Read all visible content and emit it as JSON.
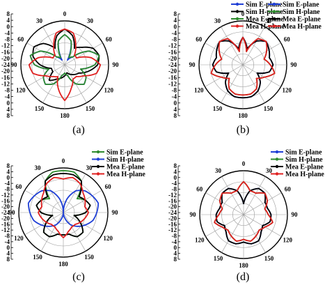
{
  "colors": {
    "blue": "#1f3fd6",
    "black": "#000000",
    "green": "#2e8b2e",
    "red": "#e02020",
    "grid": "#9a9a9a"
  },
  "radial_ticks": [
    "8",
    "4",
    "0",
    "-4",
    "-8",
    "-12",
    "-16",
    "-20",
    "-24",
    "-20",
    "-16",
    "-12",
    "-8",
    "-4",
    "0",
    "4",
    "8"
  ],
  "angle_labels": [
    "0",
    "30",
    "60",
    "90",
    "120",
    "150",
    "180",
    "150",
    "120",
    "90",
    "60",
    "30"
  ],
  "chart_data": [
    {
      "type": "polar-line",
      "caption": "(a)",
      "angle_unit": "deg",
      "r_range": [
        -24,
        8
      ],
      "grid": true,
      "legend_position": "top-right",
      "series": [
        {
          "name": "Sim  E-plane",
          "color": "#1f3fd6",
          "values": [
            -2,
            -6,
            -20,
            -16,
            -4,
            2,
            -2,
            -12,
            -6,
            -4,
            -8,
            -16,
            -18,
            -16,
            -8,
            -4,
            -6,
            -12,
            -2,
            2,
            -4,
            -16,
            -20,
            -6
          ]
        },
        {
          "name": "Sim  H-plane",
          "color": "#000000",
          "values": [
            2,
            -2,
            -10,
            -6,
            0,
            2,
            0,
            -6,
            -12,
            -14,
            -16,
            -18,
            -16,
            -14,
            -12,
            -8,
            -14,
            -14,
            -6,
            0,
            2,
            -2,
            -10,
            -2
          ]
        },
        {
          "name": "Mea E-plane",
          "color": "#2e8b2e",
          "values": [
            -2,
            -6,
            -18,
            -16,
            -4,
            2,
            -2,
            -12,
            -6,
            -4,
            -8,
            -16,
            -18,
            -16,
            -8,
            -4,
            -6,
            -12,
            -2,
            2,
            -4,
            -16,
            -18,
            -6
          ]
        },
        {
          "name": "Mea H-plane",
          "color": "#e02020",
          "values": [
            2,
            0,
            -8,
            -14,
            -14,
            -4,
            2,
            0,
            -8,
            -12,
            -12,
            -6,
            2,
            -6,
            -14,
            -12,
            -8,
            0,
            2,
            -4,
            -14,
            -14,
            -8,
            0
          ]
        }
      ]
    },
    {
      "type": "polar-line",
      "caption": "(b)",
      "angle_unit": "deg",
      "r_range": [
        -24,
        8
      ],
      "grid": true,
      "legend_position": "top-right",
      "series": [
        {
          "name": "Sim  E-plane",
          "color": "#1f3fd6",
          "values": [
            -4,
            -12,
            -4,
            0,
            -2,
            -4,
            -2,
            -4,
            -12,
            -6,
            -2,
            0,
            0,
            0,
            -2,
            -6,
            -12,
            -4,
            -2,
            -4,
            -2,
            0,
            -4,
            -12
          ]
        },
        {
          "name": "Sim  H-plane",
          "color": "#2e8b2e",
          "values": [
            -4,
            -14,
            -2,
            0,
            -4,
            -8,
            -4,
            0,
            -6,
            -10,
            -4,
            -2,
            -2,
            -2,
            -4,
            -10,
            -6,
            0,
            -4,
            -8,
            -4,
            0,
            -2,
            -14
          ]
        },
        {
          "name": "Mea E-plane",
          "color": "#000000",
          "values": [
            -4,
            -12,
            -4,
            0,
            -2,
            -4,
            -2,
            -4,
            -12,
            -6,
            -2,
            0,
            0,
            0,
            -2,
            -6,
            -12,
            -4,
            -2,
            -4,
            -2,
            0,
            -4,
            -12
          ]
        },
        {
          "name": "Mea H-plane",
          "color": "#e02020",
          "values": [
            -4,
            -14,
            -2,
            0,
            -4,
            -8,
            -4,
            0,
            -6,
            -10,
            -4,
            -2,
            -2,
            -2,
            -4,
            -10,
            -6,
            0,
            -4,
            -8,
            -4,
            0,
            -2,
            -14
          ]
        }
      ]
    },
    {
      "type": "polar-line",
      "caption": "(c)",
      "angle_unit": "deg",
      "r_range": [
        -24,
        8
      ],
      "grid": true,
      "legend_position": "top-right",
      "series": [
        {
          "name": "Sim  E-plane",
          "color": "#2e8b2e",
          "values": [
            6,
            6,
            2,
            -10,
            -6,
            -4,
            -8,
            -16,
            -10,
            -4,
            -4,
            -8,
            -8,
            -8,
            -4,
            -4,
            -10,
            -16,
            -8,
            -4,
            -6,
            -10,
            2,
            6
          ]
        },
        {
          "name": "Sim  H-plane",
          "color": "#1f3fd6",
          "values": [
            -24,
            -14,
            -6,
            -2,
            0,
            2,
            0,
            -2,
            -6,
            -10,
            -14,
            -20,
            -24,
            -20,
            -14,
            -10,
            -6,
            -2,
            0,
            2,
            0,
            -2,
            -6,
            -14
          ]
        },
        {
          "name": "Mea E-plane",
          "color": "#000000",
          "values": [
            4,
            4,
            2,
            -8,
            -6,
            -4,
            -8,
            -16,
            -10,
            -4,
            -4,
            -8,
            -8,
            -8,
            -4,
            -4,
            -10,
            -16,
            -8,
            -4,
            -6,
            -8,
            2,
            4
          ]
        },
        {
          "name": "Mea H-plane",
          "color": "#e02020",
          "values": [
            0,
            2,
            0,
            -4,
            -6,
            -8,
            -6,
            -8,
            -10,
            -12,
            -12,
            -10,
            -6,
            -10,
            -12,
            -12,
            -10,
            -8,
            -6,
            -8,
            -6,
            -4,
            0,
            2
          ]
        }
      ]
    },
    {
      "type": "polar-line",
      "caption": "(d)",
      "angle_unit": "deg",
      "r_range": [
        -24,
        8
      ],
      "grid": true,
      "legend_position": "top-right",
      "series": [
        {
          "name": "Sim  E-plane",
          "color": "#1f3fd6",
          "values": [
            -16,
            -6,
            -2,
            -2,
            -6,
            -6,
            -4,
            -4,
            -8,
            -6,
            -2,
            -2,
            -4,
            -2,
            -2,
            -6,
            -8,
            -4,
            -4,
            -6,
            -6,
            -2,
            -2,
            -6
          ]
        },
        {
          "name": "Sim  H-plane",
          "color": "#2e8b2e",
          "values": [
            0,
            -6,
            -6,
            -2,
            -4,
            -8,
            -6,
            -2,
            -6,
            -8,
            -6,
            -4,
            -6,
            -4,
            -6,
            -8,
            -6,
            -2,
            -6,
            -8,
            -4,
            -2,
            -6,
            -6
          ]
        },
        {
          "name": "Mea E-plane",
          "color": "#000000",
          "values": [
            -16,
            -6,
            -2,
            -2,
            -6,
            -6,
            -4,
            -4,
            -8,
            -6,
            -2,
            -2,
            -4,
            -2,
            -2,
            -6,
            -8,
            -4,
            -4,
            -6,
            -6,
            -2,
            -2,
            -6
          ]
        },
        {
          "name": "Mea H-plane",
          "color": "#e02020",
          "values": [
            0,
            -6,
            -6,
            -2,
            -4,
            -8,
            -6,
            -2,
            -6,
            -8,
            -6,
            -4,
            -6,
            -4,
            -6,
            -8,
            -6,
            -2,
            -6,
            -8,
            -4,
            -2,
            -6,
            -6
          ]
        }
      ]
    }
  ]
}
